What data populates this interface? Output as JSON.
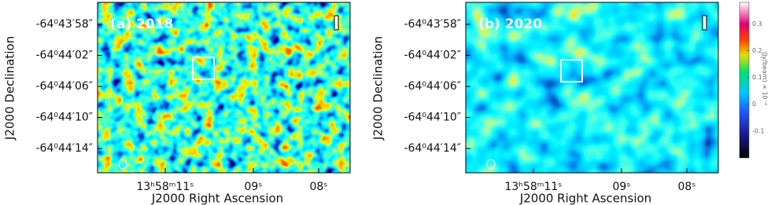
{
  "panels": [
    {
      "label": "(a) 2018",
      "y_title": "J2000 Declination",
      "x_title": "J2000 Right Ascension",
      "y_ticks": [
        "-64⁰43′58″",
        "-64⁰44′02″",
        "-64⁰44′06″",
        "-64⁰44′10″",
        "-64⁰44′14″"
      ],
      "x_ticks": [
        "13ʰ58ᵐ11ˢ",
        "09ˢ",
        "08ˢ"
      ]
    },
    {
      "label": "(b) 2020",
      "y_title": "J2000 Declination",
      "x_title": "J2000 Right Ascension",
      "y_ticks": [
        "-64⁰43′58″",
        "-64⁰44′02″",
        "-64⁰44′06″",
        "-64⁰44′10″",
        "-64⁰44′14″"
      ],
      "x_ticks": [
        "13ʰ58ᵐ11ˢ",
        "09ˢ",
        "08ˢ"
      ]
    }
  ],
  "colorbar": {
    "label": "(Jy/beam) × 10⁻⁴",
    "lim": [
      -0.2,
      0.38
    ],
    "ticks": [
      0.3,
      0.2,
      0.1,
      0,
      -0.1
    ]
  }
}
